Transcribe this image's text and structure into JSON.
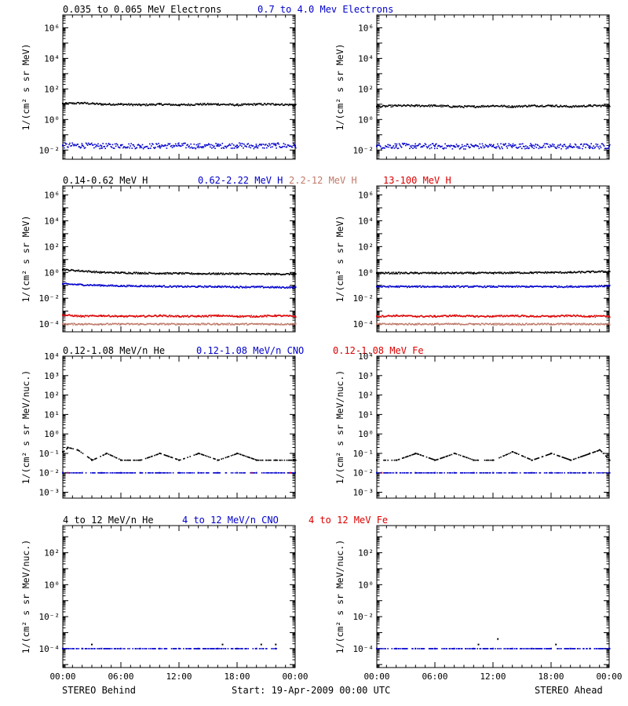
{
  "footer": {
    "left": "STEREO Behind",
    "center": "Start: 19-Apr-2009 00:00 UTC",
    "right": "STEREO Ahead"
  },
  "x_tick_labels": [
    "00:00",
    "06:00",
    "12:00",
    "18:00",
    "00:00"
  ],
  "chart_data": [
    {
      "type": "scatter",
      "row": 1,
      "legend": [
        {
          "text": "0.035 to 0.065 MeV Electrons",
          "color": "#000000"
        },
        {
          "text": "0.7 to 4.0 Mev Electrons",
          "color": "#0000cc"
        }
      ],
      "ylabel": "1/(cm² s sr MeV)",
      "yscale": "log",
      "ylim": [
        0.0025,
        7000000
      ],
      "yticks": [
        {
          "v": 0.01,
          "t": "10⁻²"
        },
        {
          "v": 1,
          "t": "10⁰"
        },
        {
          "v": 100,
          "t": "10²"
        },
        {
          "v": 10000,
          "t": "10⁴"
        },
        {
          "v": 1000000,
          "t": "10⁶"
        }
      ],
      "x_hours": [
        0,
        24
      ],
      "panels": [
        {
          "spacecraft": "STEREO Behind",
          "series": [
            {
              "name": "0.035 to 0.065 MeV Electrons",
              "color": "#000000",
              "x_hours": [
                0,
                2,
                4,
                6,
                8,
                10,
                12,
                14,
                16,
                18,
                20,
                22,
                24
              ],
              "values": [
                11,
                12,
                10,
                10,
                9,
                10,
                9,
                10,
                10,
                9,
                10,
                10,
                9
              ]
            },
            {
              "name": "0.7 to 4.0 Mev Electrons",
              "color": "#0000cc",
              "x_hours": [
                0,
                2,
                4,
                6,
                8,
                10,
                12,
                14,
                16,
                18,
                20,
                22,
                24
              ],
              "values": [
                0.02,
                0.02,
                0.018,
                0.02,
                0.018,
                0.019,
                0.02,
                0.018,
                0.019,
                0.02,
                0.018,
                0.02,
                0.019
              ]
            }
          ]
        },
        {
          "spacecraft": "STEREO Ahead",
          "series": [
            {
              "name": "0.035 to 0.065 MeV Electrons",
              "color": "#000000",
              "x_hours": [
                0,
                2,
                4,
                6,
                8,
                10,
                12,
                14,
                16,
                18,
                20,
                22,
                24
              ],
              "values": [
                7,
                8,
                8,
                8,
                7,
                7,
                8,
                7,
                8,
                8,
                7,
                8,
                8
              ]
            },
            {
              "name": "0.7 to 4.0 Mev Electrons",
              "color": "#0000cc",
              "x_hours": [
                0,
                2,
                4,
                6,
                8,
                10,
                12,
                14,
                16,
                18,
                20,
                22,
                24
              ],
              "values": [
                0.018,
                0.019,
                0.018,
                0.018,
                0.017,
                0.018,
                0.018,
                0.019,
                0.018,
                0.018,
                0.017,
                0.018,
                0.018
              ]
            }
          ]
        }
      ]
    },
    {
      "type": "scatter",
      "row": 2,
      "legend": [
        {
          "text": "0.14-0.62 MeV H",
          "color": "#000000"
        },
        {
          "text": "0.62-2.22 MeV H",
          "color": "#0000cc"
        },
        {
          "text": "2.2-12 MeV H",
          "color": "#c07a6a"
        },
        {
          "text": "13-100 MeV H",
          "color": "#dd0000"
        }
      ],
      "ylabel": "1/(cm² s sr MeV)",
      "yscale": "log",
      "ylim": [
        2.5e-05,
        5000000
      ],
      "yticks": [
        {
          "v": 0.0001,
          "t": "10⁻⁴"
        },
        {
          "v": 0.01,
          "t": "10⁻²"
        },
        {
          "v": 1,
          "t": "10⁰"
        },
        {
          "v": 100,
          "t": "10²"
        },
        {
          "v": 10000,
          "t": "10⁴"
        },
        {
          "v": 1000000,
          "t": "10⁶"
        }
      ],
      "x_hours": [
        0,
        24
      ],
      "panels": [
        {
          "spacecraft": "STEREO Behind",
          "series": [
            {
              "name": "0.14-0.62 MeV H",
              "color": "#000000",
              "x_hours": [
                0,
                2,
                4,
                6,
                8,
                10,
                12,
                14,
                16,
                18,
                20,
                22,
                24
              ],
              "values": [
                1.6,
                1.3,
                1.0,
                0.95,
                0.9,
                0.85,
                0.85,
                0.8,
                0.8,
                0.8,
                0.75,
                0.75,
                0.75
              ]
            },
            {
              "name": "0.62-2.22 MeV H",
              "color": "#0000cc",
              "x_hours": [
                0,
                2,
                4,
                6,
                8,
                10,
                12,
                14,
                16,
                18,
                20,
                22,
                24
              ],
              "values": [
                0.13,
                0.11,
                0.1,
                0.09,
                0.09,
                0.085,
                0.08,
                0.08,
                0.08,
                0.075,
                0.075,
                0.07,
                0.07
              ]
            },
            {
              "name": "2.2-12 MeV H",
              "color": "#c07a6a",
              "x_hours": [
                0,
                2,
                4,
                6,
                8,
                10,
                12,
                14,
                16,
                18,
                20,
                22,
                24
              ],
              "values": [
                0.0001,
                0.0001,
                0.0001,
                0.0001,
                0.0001,
                0.0001,
                0.0001,
                0.0001,
                0.0001,
                0.0001,
                0.0001,
                0.0001,
                0.0001
              ]
            },
            {
              "name": "13-100 MeV H",
              "color": "#dd0000",
              "x_hours": [
                0,
                2,
                4,
                6,
                8,
                10,
                12,
                14,
                16,
                18,
                20,
                22,
                24
              ],
              "values": [
                0.0005,
                0.0004,
                0.00045,
                0.0004,
                0.0004,
                0.00045,
                0.0004,
                0.0004,
                0.00045,
                0.0004,
                0.0004,
                0.00045,
                0.0004
              ]
            }
          ]
        },
        {
          "spacecraft": "STEREO Ahead",
          "series": [
            {
              "name": "0.14-0.62 MeV H",
              "color": "#000000",
              "x_hours": [
                0,
                2,
                4,
                6,
                8,
                10,
                12,
                14,
                16,
                18,
                20,
                22,
                24
              ],
              "values": [
                0.9,
                0.9,
                0.9,
                0.9,
                0.9,
                0.9,
                0.9,
                0.95,
                0.95,
                1.0,
                1.0,
                1.1,
                1.2
              ]
            },
            {
              "name": "0.62-2.22 MeV H",
              "color": "#0000cc",
              "x_hours": [
                0,
                2,
                4,
                6,
                8,
                10,
                12,
                14,
                16,
                18,
                20,
                22,
                24
              ],
              "values": [
                0.08,
                0.08,
                0.08,
                0.08,
                0.08,
                0.08,
                0.08,
                0.08,
                0.08,
                0.08,
                0.08,
                0.085,
                0.09
              ]
            },
            {
              "name": "2.2-12 MeV H",
              "color": "#c07a6a",
              "x_hours": [
                0,
                2,
                4,
                6,
                8,
                10,
                12,
                14,
                16,
                18,
                20,
                22,
                24
              ],
              "values": [
                0.0001,
                0.0001,
                0.0001,
                0.0001,
                0.0001,
                0.0001,
                0.0001,
                0.0001,
                0.0001,
                0.0001,
                0.0001,
                0.0001,
                0.0001
              ]
            },
            {
              "name": "13-100 MeV H",
              "color": "#dd0000",
              "x_hours": [
                0,
                2,
                4,
                6,
                8,
                10,
                12,
                14,
                16,
                18,
                20,
                22,
                24
              ],
              "values": [
                0.0004,
                0.00045,
                0.0004,
                0.0004,
                0.00045,
                0.0004,
                0.0004,
                0.00045,
                0.0004,
                0.0004,
                0.00045,
                0.0004,
                0.0004
              ]
            }
          ]
        }
      ]
    },
    {
      "type": "scatter",
      "row": 3,
      "legend": [
        {
          "text": "0.12-1.08 MeV/n He",
          "color": "#000000"
        },
        {
          "text": "0.12-1.08 MeV/n CNO",
          "color": "#0000cc"
        },
        {
          "text": "0.12-1.08 MeV Fe",
          "color": "#dd0000"
        }
      ],
      "ylabel": "1/(cm² s sr MeV/nuc.)",
      "yscale": "log",
      "ylim": [
        0.0005,
        10000
      ],
      "yticks": [
        {
          "v": 0.001,
          "t": "10⁻³"
        },
        {
          "v": 0.01,
          "t": "10⁻²"
        },
        {
          "v": 0.1,
          "t": "10⁻¹"
        },
        {
          "v": 1,
          "t": "10⁰"
        },
        {
          "v": 10,
          "t": "10¹"
        },
        {
          "v": 100,
          "t": "10²"
        },
        {
          "v": 1000,
          "t": "10³"
        },
        {
          "v": 10000,
          "t": "10⁴"
        }
      ],
      "x_hours": [
        0,
        24
      ],
      "panels": [
        {
          "spacecraft": "STEREO Behind",
          "series": [
            {
              "name": "0.12-1.08 MeV/n He",
              "color": "#000000",
              "x_hours": [
                0,
                0.5,
                1.5,
                3,
                4.5,
                6,
                8,
                10,
                12,
                14,
                16,
                18,
                20,
                22,
                24
              ],
              "values": [
                0.12,
                0.2,
                0.15,
                0.045,
                0.1,
                0.045,
                0.045,
                0.1,
                0.045,
                0.1,
                0.045,
                0.1,
                0.045,
                0.045,
                0.045
              ]
            },
            {
              "name": "0.12-1.08 MeV/n CNO",
              "color": "#0000cc",
              "x_hours": [
                0,
                2,
                4,
                6,
                8,
                10,
                12,
                14,
                16,
                18,
                20,
                22,
                24
              ],
              "values": [
                0.01,
                0.01,
                0.01,
                0.01,
                0.01,
                0.01,
                0.01,
                0.01,
                0.01,
                0.01,
                0.01,
                0.01,
                0.01
              ]
            },
            {
              "name": "0.12-1.08 MeV Fe",
              "color": "#dd0000",
              "x_hours": [
                0.5,
                19.5,
                23.5
              ],
              "values": [
                0.01,
                0.01,
                0.01
              ]
            }
          ]
        },
        {
          "spacecraft": "STEREO Ahead",
          "series": [
            {
              "name": "0.12-1.08 MeV/n He",
              "color": "#000000",
              "x_hours": [
                0,
                2,
                4,
                6,
                8,
                10,
                12,
                14,
                16,
                18,
                20,
                22,
                23,
                24
              ],
              "values": [
                0.045,
                0.045,
                0.1,
                0.045,
                0.1,
                0.045,
                0.045,
                0.12,
                0.045,
                0.1,
                0.045,
                0.1,
                0.15,
                0.045
              ]
            },
            {
              "name": "0.12-1.08 MeV/n CNO",
              "color": "#0000cc",
              "x_hours": [
                0,
                2,
                4,
                6,
                8,
                10,
                12,
                14,
                16,
                18,
                20,
                22,
                24
              ],
              "values": [
                0.01,
                0.01,
                0.01,
                0.01,
                0.01,
                0.01,
                0.01,
                0.01,
                0.01,
                0.01,
                0.01,
                0.01,
                0.01
              ]
            },
            {
              "name": "0.12-1.08 MeV Fe",
              "color": "#dd0000",
              "x_hours": [
                0.5
              ],
              "values": [
                0.01
              ]
            }
          ]
        }
      ]
    },
    {
      "type": "scatter",
      "row": 4,
      "legend": [
        {
          "text": "4 to 12 MeV/n He",
          "color": "#000000"
        },
        {
          "text": "4 to 12 MeV/n CNO",
          "color": "#0000cc"
        },
        {
          "text": "4 to 12 MeV Fe",
          "color": "#dd0000"
        }
      ],
      "ylabel": "1/(cm² s sr MeV/nuc.)",
      "yscale": "log",
      "ylim": [
        6.5e-06,
        5000
      ],
      "yticks": [
        {
          "v": 0.0001,
          "t": "10⁻⁴"
        },
        {
          "v": 0.01,
          "t": "10⁻²"
        },
        {
          "v": 1,
          "t": "10⁰"
        },
        {
          "v": 100,
          "t": "10²"
        }
      ],
      "x_hours": [
        0,
        24
      ],
      "panels": [
        {
          "spacecraft": "STEREO Behind",
          "series": [
            {
              "name": "4 to 12 MeV/n He",
              "color": "#000000",
              "x_hours": [
                3,
                16.5,
                20.5,
                22
              ],
              "values": [
                0.00018,
                0.00018,
                0.00018,
                0.00018
              ]
            },
            {
              "name": "4 to 12 MeV/n CNO",
              "color": "#0000cc",
              "x_hours": [
                0,
                2,
                4,
                6,
                8,
                10,
                12,
                14,
                16,
                18,
                20,
                22
              ],
              "values": [
                0.0001,
                0.0001,
                0.0001,
                0.0001,
                0.0001,
                0.0001,
                0.0001,
                0.0001,
                0.0001,
                0.0001,
                0.0001,
                0.0001
              ]
            }
          ]
        },
        {
          "spacecraft": "STEREO Ahead",
          "series": [
            {
              "name": "4 to 12 MeV/n He",
              "color": "#000000",
              "x_hours": [
                10.5,
                12.5,
                18.5
              ],
              "values": [
                0.00018,
                0.0004,
                0.00018
              ]
            },
            {
              "name": "4 to 12 MeV/n CNO",
              "color": "#0000cc",
              "x_hours": [
                0,
                2,
                4,
                6,
                8,
                10,
                12,
                14,
                16,
                18,
                20,
                22,
                24
              ],
              "values": [
                0.0001,
                0.0001,
                0.0001,
                0.0001,
                0.0001,
                0.0001,
                0.0001,
                0.0001,
                0.0001,
                0.0001,
                0.0001,
                0.0001,
                0.0001
              ]
            }
          ]
        }
      ]
    }
  ]
}
